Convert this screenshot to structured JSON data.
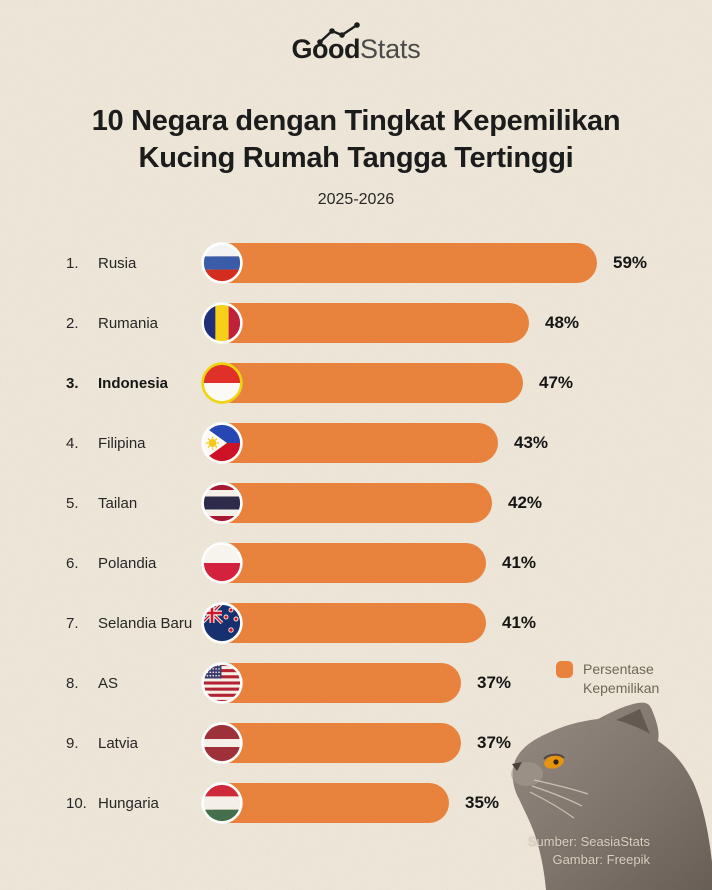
{
  "page": {
    "background": "#EDE6D8",
    "accent_orange": "#E8823C"
  },
  "header": {
    "logo": {
      "bold": "Good",
      "light": "Stats",
      "icon": "trend-line-icon"
    },
    "title_line1": "10 Negara dengan Tingkat Kepemilikan",
    "title_line2": "Kucing Rumah Tangga Tertinggi",
    "subtitle": "2025-2026"
  },
  "chart_data": {
    "type": "bar",
    "orientation": "horizontal",
    "title": "10 Negara dengan Tingkat Kepemilikan Kucing Rumah Tangga Tertinggi",
    "subtitle": "2025-2026",
    "unit": "%",
    "xlim": [
      0,
      60
    ],
    "bar_color": "#E8823C",
    "grid": false,
    "highlighted_category": "Indonesia",
    "legend": {
      "label": "Persentase Kepemilikan",
      "color": "#E8823C",
      "position": "middle-right"
    },
    "categories": [
      "Rusia",
      "Rumania",
      "Indonesia",
      "Filipina",
      "Tailan",
      "Polandia",
      "Selandia Baru",
      "AS",
      "Latvia",
      "Hungaria"
    ],
    "values": [
      59,
      48,
      47,
      43,
      42,
      41,
      41,
      37,
      37,
      35
    ],
    "rows": [
      {
        "rank": "1.",
        "category": "Rusia",
        "value": 59,
        "label": "59%",
        "flag": "flag-russia-icon",
        "highlight": false
      },
      {
        "rank": "2.",
        "category": "Rumania",
        "value": 48,
        "label": "48%",
        "flag": "flag-romania-icon",
        "highlight": false
      },
      {
        "rank": "3.",
        "category": "Indonesia",
        "value": 47,
        "label": "47%",
        "flag": "flag-indonesia-icon",
        "highlight": true
      },
      {
        "rank": "4.",
        "category": "Filipina",
        "value": 43,
        "label": "43%",
        "flag": "flag-philippines-icon",
        "highlight": false
      },
      {
        "rank": "5.",
        "category": "Tailan",
        "value": 42,
        "label": "42%",
        "flag": "flag-thailand-icon",
        "highlight": false
      },
      {
        "rank": "6.",
        "category": "Polandia",
        "value": 41,
        "label": "41%",
        "flag": "flag-poland-icon",
        "highlight": false
      },
      {
        "rank": "7.",
        "category": "Selandia Baru",
        "value": 41,
        "label": "41%",
        "flag": "flag-new-zealand-icon",
        "highlight": false
      },
      {
        "rank": "8.",
        "category": "AS",
        "value": 37,
        "label": "37%",
        "flag": "flag-usa-icon",
        "highlight": false
      },
      {
        "rank": "9.",
        "category": "Latvia",
        "value": 37,
        "label": "37%",
        "flag": "flag-latvia-icon",
        "highlight": false
      },
      {
        "rank": "10.",
        "category": "Hungaria",
        "value": 35,
        "label": "35%",
        "flag": "flag-hungary-icon",
        "highlight": false
      }
    ]
  },
  "footer": {
    "image": "cat-photo",
    "source_line1": "Sumber: SeasiaStats",
    "source_line2": "Gambar: Freepik"
  }
}
